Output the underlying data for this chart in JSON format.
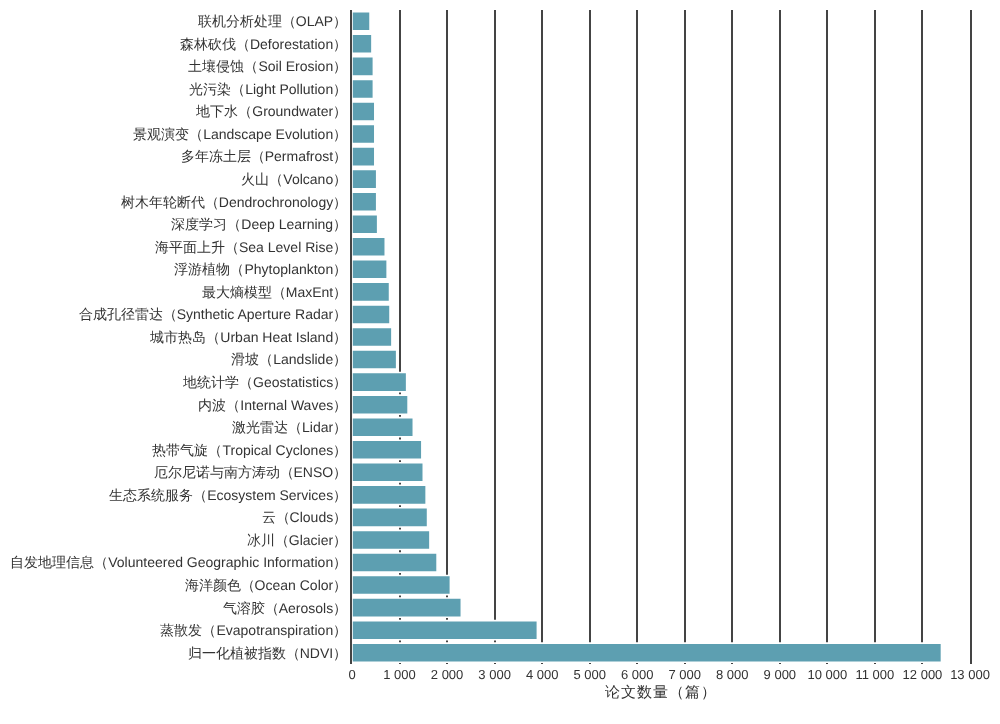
{
  "chart_data": {
    "type": "bar",
    "orientation": "horizontal",
    "xlabel": "论文数量（篇）",
    "categories": [
      "联机分析处理（OLAP）",
      "森林砍伐（Deforestation）",
      "土壤侵蚀（Soil Erosion）",
      "光污染（Light Pollution）",
      "地下水（Groundwater）",
      "景观演变（Landscape Evolution）",
      "多年冻土层（Permafrost）",
      "火山（Volcano）",
      "树木年轮断代（Dendrochronology）",
      "深度学习（Deep Learning）",
      "海平面上升（Sea Level Rise）",
      "浮游植物（Phytoplankton）",
      "最大熵模型（MaxEnt）",
      "合成孔径雷达（Synthetic Aperture Radar）",
      "城市热岛（Urban Heat Island）",
      "滑坡（Landslide）",
      "地统计学（Geostatistics）",
      "内波（Internal Waves）",
      "激光雷达（Lidar）",
      "热带气旋（Tropical Cyclones）",
      "厄尔尼诺与南方涛动（ENSO）",
      "生态系统服务（Ecosystem Services）",
      "云（Clouds）",
      "冰川（Glacier）",
      "自发地理信息（Volunteered Geographic Information）",
      "海洋颜色（Ocean Color）",
      "气溶胶（Aerosols）",
      "蒸散发（Evapotranspiration）",
      "归一化植被指数（NDVI）"
    ],
    "values": [
      380,
      420,
      450,
      450,
      480,
      480,
      480,
      520,
      520,
      540,
      700,
      740,
      790,
      800,
      840,
      940,
      1150,
      1180,
      1290,
      1470,
      1500,
      1560,
      1590,
      1640,
      1790,
      2070,
      2300,
      3900,
      12400
    ],
    "color": "#5d9fb1",
    "xlim": [
      0,
      13000
    ],
    "xticks": [
      0,
      {
        "value": 1000,
        "label": "1 000"
      },
      {
        "value": 2000,
        "label": "2 000"
      },
      {
        "value": 3000,
        "label": "3 000"
      },
      {
        "value": 4000,
        "label": "4 000"
      },
      {
        "value": 5000,
        "label": "5 000"
      },
      {
        "value": 6000,
        "label": "6 000"
      },
      {
        "value": 7000,
        "label": "7 000"
      },
      {
        "value": 8000,
        "label": "8 000"
      },
      {
        "value": 9000,
        "label": "9 000"
      },
      {
        "value": 10000,
        "label": "10 000"
      },
      {
        "value": 11000,
        "label": "11 000"
      },
      {
        "value": 12000,
        "label": "12 000"
      },
      {
        "value": 13000,
        "label": "13 000"
      }
    ],
    "grid": "x"
  }
}
